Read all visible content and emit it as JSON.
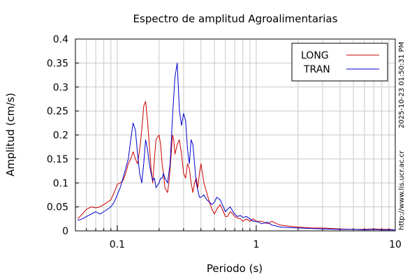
{
  "chart_data": {
    "type": "line",
    "title": "Espectro de amplitud Agroalimentarias",
    "xlabel": "Periodo (s)",
    "ylabel": "Amplitud (cm/s)",
    "x_scale": "log",
    "xlim": [
      0.05,
      10
    ],
    "ylim": [
      0,
      0.4
    ],
    "x_ticks": [
      {
        "value": 0.1,
        "label": "0.1"
      },
      {
        "value": 1,
        "label": "1"
      },
      {
        "value": 10,
        "label": "10"
      }
    ],
    "y_ticks": [
      {
        "value": 0,
        "label": "0"
      },
      {
        "value": 0.05,
        "label": "0.05"
      },
      {
        "value": 0.1,
        "label": "0.1"
      },
      {
        "value": 0.15,
        "label": "0.15"
      },
      {
        "value": 0.2,
        "label": "0.2"
      },
      {
        "value": 0.25,
        "label": "0.25"
      },
      {
        "value": 0.3,
        "label": "0.3"
      },
      {
        "value": 0.35,
        "label": "0.35"
      },
      {
        "value": 0.4,
        "label": "0.4"
      }
    ],
    "grid": true,
    "legend_position": "top-right",
    "series": [
      {
        "name": "LONG",
        "color": "#cc0000",
        "x": [
          0.052,
          0.056,
          0.06,
          0.065,
          0.07,
          0.075,
          0.08,
          0.085,
          0.09,
          0.095,
          0.1,
          0.105,
          0.11,
          0.115,
          0.12,
          0.125,
          0.13,
          0.135,
          0.14,
          0.145,
          0.15,
          0.155,
          0.16,
          0.165,
          0.17,
          0.175,
          0.18,
          0.185,
          0.19,
          0.2,
          0.205,
          0.21,
          0.215,
          0.22,
          0.23,
          0.235,
          0.24,
          0.25,
          0.255,
          0.26,
          0.27,
          0.28,
          0.29,
          0.3,
          0.31,
          0.32,
          0.33,
          0.34,
          0.35,
          0.36,
          0.37,
          0.38,
          0.39,
          0.4,
          0.42,
          0.44,
          0.46,
          0.48,
          0.5,
          0.52,
          0.55,
          0.58,
          0.6,
          0.62,
          0.65,
          0.68,
          0.7,
          0.73,
          0.77,
          0.8,
          0.85,
          0.9,
          0.95,
          1.0,
          1.1,
          1.2,
          1.3,
          1.4,
          1.5,
          1.7,
          2.0,
          2.5,
          3.0,
          4.0,
          5.0,
          6.0,
          7.0,
          8.0,
          9.0,
          10.0
        ],
        "values": [
          0.025,
          0.035,
          0.045,
          0.05,
          0.048,
          0.05,
          0.055,
          0.06,
          0.065,
          0.08,
          0.097,
          0.1,
          0.105,
          0.12,
          0.14,
          0.15,
          0.165,
          0.15,
          0.14,
          0.17,
          0.21,
          0.26,
          0.27,
          0.23,
          0.18,
          0.13,
          0.1,
          0.15,
          0.19,
          0.2,
          0.18,
          0.14,
          0.12,
          0.09,
          0.08,
          0.1,
          0.13,
          0.2,
          0.19,
          0.16,
          0.18,
          0.19,
          0.16,
          0.12,
          0.11,
          0.14,
          0.13,
          0.1,
          0.08,
          0.1,
          0.11,
          0.09,
          0.12,
          0.14,
          0.1,
          0.08,
          0.06,
          0.045,
          0.035,
          0.045,
          0.055,
          0.04,
          0.03,
          0.03,
          0.04,
          0.035,
          0.03,
          0.027,
          0.025,
          0.02,
          0.025,
          0.02,
          0.025,
          0.02,
          0.02,
          0.015,
          0.02,
          0.015,
          0.012,
          0.01,
          0.008,
          0.006,
          0.006,
          0.004,
          0.003,
          0.003,
          0.004,
          0.003,
          0.003,
          0.002
        ]
      },
      {
        "name": "TRAN",
        "color": "#0000cc",
        "x": [
          0.052,
          0.056,
          0.06,
          0.065,
          0.07,
          0.075,
          0.08,
          0.085,
          0.09,
          0.095,
          0.1,
          0.105,
          0.11,
          0.115,
          0.12,
          0.125,
          0.13,
          0.135,
          0.14,
          0.145,
          0.15,
          0.155,
          0.16,
          0.165,
          0.17,
          0.175,
          0.18,
          0.185,
          0.19,
          0.2,
          0.205,
          0.21,
          0.215,
          0.22,
          0.23,
          0.24,
          0.25,
          0.26,
          0.27,
          0.275,
          0.28,
          0.29,
          0.3,
          0.31,
          0.32,
          0.33,
          0.34,
          0.35,
          0.36,
          0.37,
          0.38,
          0.39,
          0.4,
          0.42,
          0.44,
          0.46,
          0.48,
          0.5,
          0.52,
          0.55,
          0.58,
          0.6,
          0.62,
          0.65,
          0.68,
          0.7,
          0.73,
          0.77,
          0.8,
          0.85,
          0.9,
          0.95,
          1.0,
          1.1,
          1.2,
          1.3,
          1.4,
          1.5,
          1.7,
          2.0,
          2.5,
          3.0,
          4.0,
          5.0,
          6.0,
          7.0,
          8.0,
          9.0,
          10.0
        ],
        "values": [
          0.022,
          0.025,
          0.03,
          0.035,
          0.04,
          0.035,
          0.04,
          0.045,
          0.05,
          0.06,
          0.075,
          0.09,
          0.11,
          0.13,
          0.15,
          0.19,
          0.225,
          0.21,
          0.16,
          0.12,
          0.1,
          0.14,
          0.19,
          0.17,
          0.14,
          0.12,
          0.105,
          0.11,
          0.09,
          0.1,
          0.11,
          0.11,
          0.12,
          0.11,
          0.1,
          0.14,
          0.24,
          0.32,
          0.35,
          0.3,
          0.25,
          0.22,
          0.245,
          0.23,
          0.17,
          0.14,
          0.19,
          0.18,
          0.14,
          0.1,
          0.085,
          0.07,
          0.07,
          0.075,
          0.065,
          0.06,
          0.055,
          0.06,
          0.07,
          0.065,
          0.05,
          0.04,
          0.045,
          0.05,
          0.04,
          0.035,
          0.03,
          0.032,
          0.028,
          0.03,
          0.025,
          0.02,
          0.02,
          0.015,
          0.018,
          0.012,
          0.01,
          0.008,
          0.007,
          0.006,
          0.005,
          0.004,
          0.003,
          0.003,
          0.002,
          0.003,
          0.002,
          0.002,
          0.002
        ]
      }
    ]
  },
  "side_annotations": {
    "timestamp": "2025-10-23 01:50:31 PM",
    "website": "http://www.lis.ucr.ac.cr"
  }
}
